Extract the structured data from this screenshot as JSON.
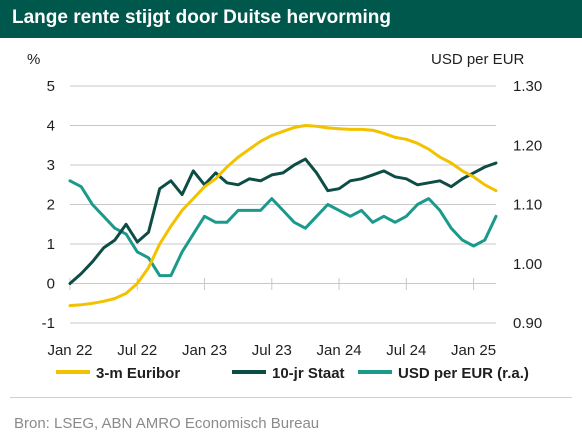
{
  "header": {
    "title": "Lange rente stijgt door Duitse hervorming"
  },
  "footer": {
    "source": "Bron: LSEG, ABN AMRO Economisch Bureau"
  },
  "colors": {
    "header_bg": "#00584c",
    "euribor": "#f2c200",
    "staat": "#0e4d45",
    "usd": "#1b9a8c",
    "grid": "#c8c8c8"
  },
  "chart_data": {
    "type": "line",
    "xlabel": "",
    "ylabel_left": "%",
    "ylabel_right": "USD per EUR",
    "ylim_left": [
      -1,
      5
    ],
    "ylim_right": [
      0.9,
      1.3
    ],
    "yticks_left": [
      "5",
      "4",
      "3",
      "2",
      "1",
      "0",
      "-1"
    ],
    "yticks_right": [
      "1.30",
      "1.20",
      "1.10",
      "1.00",
      "0.90"
    ],
    "xticks": [
      "Jan 22",
      "Jul 22",
      "Jan 23",
      "Jul 23",
      "Jan 24",
      "Jul 24",
      "Jan 25"
    ],
    "x_range": [
      "2022-01",
      "2025-03"
    ],
    "grid": "horizontal",
    "legend_position": "bottom",
    "series": [
      {
        "name": "3-m Euribor",
        "axis": "left",
        "x": [
          "2022-01",
          "2022-02",
          "2022-03",
          "2022-04",
          "2022-05",
          "2022-06",
          "2022-07",
          "2022-08",
          "2022-09",
          "2022-10",
          "2022-11",
          "2022-12",
          "2023-01",
          "2023-02",
          "2023-03",
          "2023-04",
          "2023-05",
          "2023-06",
          "2023-07",
          "2023-08",
          "2023-09",
          "2023-10",
          "2023-11",
          "2023-12",
          "2024-01",
          "2024-02",
          "2024-03",
          "2024-04",
          "2024-05",
          "2024-06",
          "2024-07",
          "2024-08",
          "2024-09",
          "2024-10",
          "2024-11",
          "2024-12",
          "2025-01",
          "2025-02",
          "2025-03"
        ],
        "values": [
          -0.56,
          -0.54,
          -0.5,
          -0.45,
          -0.38,
          -0.25,
          0.0,
          0.4,
          1.0,
          1.45,
          1.85,
          2.15,
          2.45,
          2.65,
          2.95,
          3.2,
          3.4,
          3.6,
          3.75,
          3.85,
          3.95,
          4.0,
          3.98,
          3.94,
          3.92,
          3.9,
          3.9,
          3.88,
          3.8,
          3.7,
          3.65,
          3.55,
          3.4,
          3.2,
          3.05,
          2.85,
          2.7,
          2.5,
          2.35
        ]
      },
      {
        "name": "10-jr Staat",
        "axis": "left",
        "x": [
          "2022-01",
          "2022-02",
          "2022-03",
          "2022-04",
          "2022-05",
          "2022-06",
          "2022-07",
          "2022-08",
          "2022-09",
          "2022-10",
          "2022-11",
          "2022-12",
          "2023-01",
          "2023-02",
          "2023-03",
          "2023-04",
          "2023-05",
          "2023-06",
          "2023-07",
          "2023-08",
          "2023-09",
          "2023-10",
          "2023-11",
          "2023-12",
          "2024-01",
          "2024-02",
          "2024-03",
          "2024-04",
          "2024-05",
          "2024-06",
          "2024-07",
          "2024-08",
          "2024-09",
          "2024-10",
          "2024-11",
          "2024-12",
          "2025-01",
          "2025-02",
          "2025-03"
        ],
        "values": [
          0.0,
          0.25,
          0.55,
          0.9,
          1.1,
          1.5,
          1.05,
          1.3,
          2.4,
          2.6,
          2.25,
          2.85,
          2.5,
          2.8,
          2.55,
          2.5,
          2.65,
          2.6,
          2.75,
          2.8,
          3.0,
          3.15,
          2.8,
          2.35,
          2.4,
          2.6,
          2.65,
          2.75,
          2.85,
          2.7,
          2.65,
          2.5,
          2.55,
          2.6,
          2.45,
          2.65,
          2.8,
          2.95,
          3.05
        ]
      },
      {
        "name": "USD per EUR (r.a.)",
        "axis": "right",
        "x": [
          "2022-01",
          "2022-02",
          "2022-03",
          "2022-04",
          "2022-05",
          "2022-06",
          "2022-07",
          "2022-08",
          "2022-09",
          "2022-10",
          "2022-11",
          "2022-12",
          "2023-01",
          "2023-02",
          "2023-03",
          "2023-04",
          "2023-05",
          "2023-06",
          "2023-07",
          "2023-08",
          "2023-09",
          "2023-10",
          "2023-11",
          "2023-12",
          "2024-01",
          "2024-02",
          "2024-03",
          "2024-04",
          "2024-05",
          "2024-06",
          "2024-07",
          "2024-08",
          "2024-09",
          "2024-10",
          "2024-11",
          "2024-12",
          "2025-01",
          "2025-02",
          "2025-03"
        ],
        "values": [
          1.14,
          1.13,
          1.1,
          1.08,
          1.06,
          1.05,
          1.02,
          1.01,
          0.98,
          0.98,
          1.02,
          1.05,
          1.08,
          1.07,
          1.07,
          1.09,
          1.09,
          1.09,
          1.11,
          1.09,
          1.07,
          1.06,
          1.08,
          1.1,
          1.09,
          1.08,
          1.09,
          1.07,
          1.08,
          1.07,
          1.08,
          1.1,
          1.11,
          1.09,
          1.06,
          1.04,
          1.03,
          1.04,
          1.08
        ]
      }
    ]
  }
}
